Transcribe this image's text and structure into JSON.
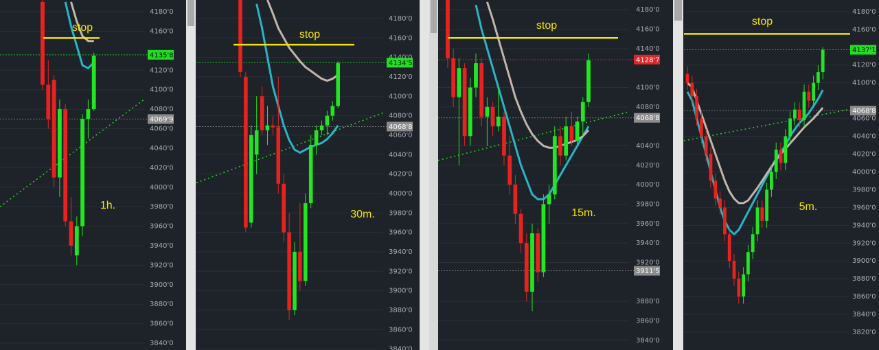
{
  "chart_data": [
    {
      "type": "candlestick",
      "ylim": [
        3833,
        4192
      ],
      "yticks": [
        {
          "value": 4180,
          "label": "4180'0"
        },
        {
          "value": 4160,
          "label": "4160'0"
        },
        {
          "value": 4120,
          "label": "4120'0"
        },
        {
          "value": 4100,
          "label": "4100'0"
        },
        {
          "value": 4080,
          "label": "4080'0"
        },
        {
          "value": 4060,
          "label": "4060'0"
        },
        {
          "value": 4040,
          "label": "4040'0"
        },
        {
          "value": 4020,
          "label": "4020'0"
        },
        {
          "value": 4000,
          "label": "4000'0"
        },
        {
          "value": 3980,
          "label": "3980'0"
        },
        {
          "value": 3960,
          "label": "3960'0"
        },
        {
          "value": 3940,
          "label": "3940'0"
        },
        {
          "value": 3920,
          "label": "3920'0"
        },
        {
          "value": 3900,
          "label": "3900'0"
        },
        {
          "value": 3880,
          "label": "3880'0"
        },
        {
          "value": 3860,
          "label": "3860'0"
        },
        {
          "value": 3840,
          "label": "3840'0"
        }
      ],
      "open": [
        4190,
        4105,
        4110,
        4010,
        4080,
        3965,
        3930,
        3960,
        4070,
        4080
      ],
      "high": [
        4192,
        4130,
        4115,
        4090,
        4085,
        3990,
        3970,
        4075,
        4090,
        4138
      ],
      "low": [
        4100,
        4060,
        4000,
        3990,
        3960,
        3930,
        3920,
        3950,
        4050,
        4078
      ],
      "close": [
        4105,
        4070,
        4010,
        4080,
        3965,
        3940,
        3960,
        4070,
        4080,
        4135
      ],
      "series": [
        {
          "color": "#2ab4c6",
          "values": [
            null,
            null,
            null,
            null,
            4190,
            4165,
            4145,
            4125,
            4122,
            4128
          ]
        },
        {
          "color": "#c2b6ac",
          "values": [
            null,
            null,
            null,
            null,
            null,
            4190,
            4170,
            4155,
            4150,
            4150
          ]
        }
      ],
      "trendline": [
        3980,
        4090
      ],
      "annotations": [
        {
          "text": "stop",
          "value": 4153
        },
        {
          "text": "1h."
        }
      ],
      "price_labels": [
        {
          "value": 4135.8,
          "label": "4135'8",
          "color": "#22dd22"
        },
        {
          "value": 4069.9,
          "label": "4069'9",
          "color": "#8c8c8c"
        }
      ]
    },
    {
      "type": "candlestick",
      "ylim": [
        3839,
        4199
      ],
      "yticks": [
        {
          "value": 4180,
          "label": "4180'0"
        },
        {
          "value": 4160,
          "label": "4160'0"
        },
        {
          "value": 4140,
          "label": "4140'0"
        },
        {
          "value": 4120,
          "label": "4120'0"
        },
        {
          "value": 4100,
          "label": "4100'0"
        },
        {
          "value": 4080,
          "label": "4080'0"
        },
        {
          "value": 4060,
          "label": "4060'0"
        },
        {
          "value": 4040,
          "label": "4040'0"
        },
        {
          "value": 4020,
          "label": "4020'0"
        },
        {
          "value": 4000,
          "label": "4000'0"
        },
        {
          "value": 3980,
          "label": "3980'0"
        },
        {
          "value": 3960,
          "label": "3960'0"
        },
        {
          "value": 3940,
          "label": "3940'0"
        },
        {
          "value": 3920,
          "label": "3920'0"
        },
        {
          "value": 3900,
          "label": "3900'0"
        },
        {
          "value": 3880,
          "label": "3880'0"
        },
        {
          "value": 3860,
          "label": "3860'0"
        },
        {
          "value": 3840,
          "label": "3840'0"
        }
      ],
      "open": [
        4200,
        4120,
        3970,
        4040,
        4100,
        4065,
        4070,
        4068,
        4010,
        3960,
        3880,
        3940,
        3910,
        3990,
        4050,
        4065,
        4070,
        4080,
        4090
      ],
      "high": [
        4201,
        4125,
        4070,
        4100,
        4110,
        4090,
        4080,
        4120,
        4020,
        3980,
        3950,
        3990,
        4000,
        4060,
        4070,
        4075,
        4085,
        4095,
        4136
      ],
      "low": [
        4120,
        3960,
        3965,
        4020,
        4060,
        4050,
        4060,
        4000,
        3950,
        3870,
        3875,
        3900,
        3905,
        3985,
        4040,
        4060,
        4060,
        4075,
        4088
      ],
      "close": [
        4125,
        3965,
        4060,
        4065,
        4065,
        4070,
        4068,
        4010,
        3960,
        3880,
        3940,
        3910,
        3990,
        4050,
        4065,
        4070,
        4080,
        4090,
        4134
      ],
      "series": [
        {
          "color": "#2ab4c6",
          "values": [
            null,
            null,
            null,
            4195,
            4170,
            4140,
            4110,
            4090,
            4070,
            4055,
            4045,
            4042,
            4045,
            4048,
            4050,
            4052,
            4056,
            4062,
            4070
          ]
        },
        {
          "color": "#c2b6ac",
          "values": [
            null,
            null,
            null,
            null,
            null,
            4199,
            4185,
            4170,
            4160,
            4150,
            4143,
            4136,
            4130,
            4126,
            4122,
            4118,
            4116,
            4118,
            4122
          ]
        }
      ],
      "trendline": [
        4011,
        4083
      ],
      "annotations": [
        {
          "text": "stop",
          "value": 4153
        },
        {
          "text": "30m."
        }
      ],
      "price_labels": [
        {
          "value": 4134.5,
          "label": "4134'5",
          "color": "#22dd22"
        },
        {
          "value": 4068.8,
          "label": "4068'8",
          "color": "#8c8c8c"
        }
      ]
    },
    {
      "type": "candlestick",
      "ylim": [
        3830,
        4190
      ],
      "yticks": [
        {
          "value": 4180,
          "label": "4180'0"
        },
        {
          "value": 4160,
          "label": "4160'0"
        },
        {
          "value": 4140,
          "label": "4140'0"
        },
        {
          "value": 4100,
          "label": "4100'0"
        },
        {
          "value": 4080,
          "label": "4080'0"
        },
        {
          "value": 4040,
          "label": "4040'0"
        },
        {
          "value": 4020,
          "label": "4020'0"
        },
        {
          "value": 4000,
          "label": "4000'0"
        },
        {
          "value": 3980,
          "label": "3980'0"
        },
        {
          "value": 3960,
          "label": "3960'0"
        },
        {
          "value": 3940,
          "label": "3940'0"
        },
        {
          "value": 3920,
          "label": "3920'0"
        },
        {
          "value": 3880,
          "label": "3880'0"
        },
        {
          "value": 3860,
          "label": "3860'0"
        },
        {
          "value": 3840,
          "label": "3840'0"
        }
      ],
      "open": [
        4190,
        4130,
        4090,
        4120,
        4050,
        4100,
        4125,
        4070,
        4080,
        4060,
        4070,
        4030,
        4000,
        3970,
        3940,
        3890,
        3950,
        3910,
        3980,
        3990,
        4050,
        4030,
        4060,
        4045,
        4065,
        4085
      ],
      "high": [
        4192,
        4140,
        4130,
        4125,
        4110,
        4135,
        4130,
        4090,
        4085,
        4100,
        4075,
        4050,
        4010,
        3975,
        3950,
        3960,
        3955,
        3990,
        4000,
        4060,
        4060,
        4070,
        4075,
        4070,
        4090,
        4135
      ],
      "low": [
        4120,
        4080,
        4020,
        4040,
        4040,
        4090,
        4060,
        4040,
        4050,
        4055,
        4020,
        3990,
        3960,
        3930,
        3880,
        3870,
        3900,
        3905,
        3960,
        3985,
        4020,
        4025,
        4040,
        4040,
        4050,
        4080
      ],
      "close": [
        4130,
        4090,
        4120,
        4050,
        4100,
        4125,
        4070,
        4080,
        4060,
        4070,
        4030,
        4000,
        3970,
        3940,
        3890,
        3950,
        3910,
        3980,
        3990,
        4050,
        4030,
        4060,
        4045,
        4065,
        4085,
        4128
      ],
      "series": [
        {
          "color": "#2ab4c6",
          "values": [
            null,
            null,
            null,
            null,
            null,
            4185,
            4160,
            4140,
            4120,
            4100,
            4080,
            4060,
            4040,
            4020,
            4005,
            3990,
            3985,
            3985,
            3990,
            4000,
            4010,
            4020,
            4030,
            4040,
            4050,
            4060
          ]
        },
        {
          "color": "#c2b6ac",
          "values": [
            null,
            null,
            null,
            null,
            null,
            null,
            null,
            4188,
            4170,
            4150,
            4130,
            4110,
            4090,
            4075,
            4062,
            4052,
            4045,
            4040,
            4038,
            4038,
            4040,
            4042,
            4044,
            4046,
            4050,
            4056
          ]
        }
      ],
      "trendline": [
        4025,
        4075
      ],
      "annotations": [
        {
          "text": "stop",
          "value": 4151
        },
        {
          "text": "15m."
        }
      ],
      "price_labels": [
        {
          "value": 4128.7,
          "label": "4128'7",
          "color": "#e0262a"
        },
        {
          "value": 4068.8,
          "label": "4068'8",
          "color": "#8c8c8c"
        },
        {
          "value": 3911.5,
          "label": "3911'5",
          "color": "#8c8c8c"
        }
      ]
    },
    {
      "type": "candlestick",
      "ylim": [
        3800,
        4193
      ],
      "yticks": [
        {
          "value": 4180,
          "label": "4180'0"
        },
        {
          "value": 4160,
          "label": "4160'0"
        },
        {
          "value": 4120,
          "label": "4120'0"
        },
        {
          "value": 4100,
          "label": "4100'0"
        },
        {
          "value": 4060,
          "label": "4060'0"
        },
        {
          "value": 4040,
          "label": "4040'0"
        },
        {
          "value": 4020,
          "label": "4020'0"
        },
        {
          "value": 4000,
          "label": "4000'0"
        },
        {
          "value": 3980,
          "label": "3980'0"
        },
        {
          "value": 3960,
          "label": "3960'0"
        },
        {
          "value": 3940,
          "label": "3940'0"
        },
        {
          "value": 3920,
          "label": "3920'0"
        },
        {
          "value": 3900,
          "label": "3900'0"
        },
        {
          "value": 3880,
          "label": "3880'0"
        },
        {
          "value": 3860,
          "label": "3860'0"
        },
        {
          "value": 3840,
          "label": "3840'0"
        },
        {
          "value": 3820,
          "label": "3820'0"
        }
      ],
      "open": [
        4110,
        4100,
        4085,
        4060,
        4040,
        4020,
        3990,
        3970,
        3960,
        3930,
        3900,
        3880,
        3860,
        3885,
        3910,
        3930,
        3960,
        3945,
        3980,
        4000,
        4025,
        4010,
        4040,
        4060,
        4070,
        4058,
        4090,
        4080,
        4100,
        4112
      ],
      "high": [
        4118,
        4108,
        4093,
        4068,
        4048,
        4028,
        3998,
        3978,
        3968,
        3938,
        3908,
        3888,
        3893,
        3918,
        3938,
        3968,
        3968,
        3988,
        4008,
        4033,
        4033,
        4048,
        4068,
        4078,
        4078,
        4098,
        4098,
        4108,
        4120,
        4140
      ],
      "low": [
        4092,
        4077,
        4052,
        4032,
        4012,
        3982,
        3962,
        3952,
        3922,
        3892,
        3872,
        3852,
        3852,
        3877,
        3902,
        3922,
        3937,
        3937,
        3972,
        3992,
        4002,
        4002,
        4032,
        4052,
        4050,
        4050,
        4072,
        4072,
        4092,
        4104
      ],
      "close": [
        4100,
        4085,
        4060,
        4040,
        4020,
        3990,
        3970,
        3960,
        3930,
        3900,
        3880,
        3860,
        3885,
        3910,
        3930,
        3960,
        3945,
        3980,
        4000,
        4025,
        4010,
        4040,
        4060,
        4070,
        4058,
        4090,
        4080,
        4100,
        4112,
        4137
      ],
      "series": [
        {
          "color": "#2ab4c6",
          "values": [
            4090,
            4080,
            4060,
            4040,
            4020,
            4000,
            3980,
            3960,
            3945,
            3935,
            3930,
            3935,
            3945,
            3955,
            3965,
            3975,
            3985,
            3995,
            4005,
            4015,
            4022,
            4030,
            4040,
            4048,
            4055,
            4060,
            4066,
            4074,
            4082,
            4092
          ]
        },
        {
          "color": "#c2b6ac",
          "values": [
            4100,
            4095,
            4080,
            4065,
            4050,
            4035,
            4020,
            4005,
            3990,
            3978,
            3970,
            3965,
            3965,
            3968,
            3975,
            3982,
            3990,
            3998,
            4006,
            4013,
            4020,
            4026,
            4032,
            4038,
            4044,
            4050,
            4055,
            4060,
            4066,
            4072
          ]
        }
      ],
      "trendline": [
        4035,
        4070
      ],
      "annotations": [
        {
          "text": "stop",
          "value": 4155
        },
        {
          "text": "5m."
        }
      ],
      "price_labels": [
        {
          "value": 4137.1,
          "label": "4137'1",
          "color": "#22dd22"
        },
        {
          "value": 4068.8,
          "label": "4068'8",
          "color": "#8c8c8c"
        }
      ]
    }
  ]
}
